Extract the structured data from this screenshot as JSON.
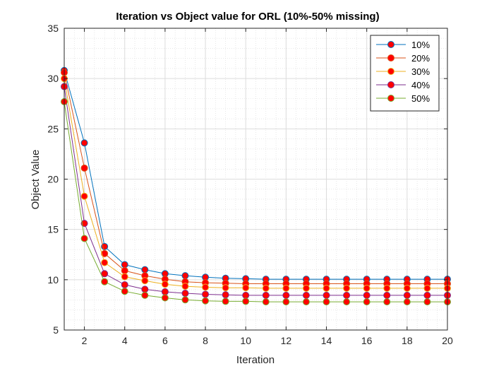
{
  "chart_data": {
    "type": "line",
    "title": "Iteration vs Object value for ORL (10%-50% missing)",
    "xlabel": "Iteration",
    "ylabel": "Object Value",
    "xlim": [
      1,
      20
    ],
    "ylim": [
      5,
      35
    ],
    "xticks": [
      2,
      4,
      6,
      8,
      10,
      12,
      14,
      16,
      18,
      20
    ],
    "yticks": [
      5,
      10,
      15,
      20,
      25,
      30,
      35
    ],
    "grid": true,
    "minor_grid": true,
    "legend_position": "top-right",
    "marker_fill": "#ff0000",
    "x": [
      1,
      2,
      3,
      4,
      5,
      6,
      7,
      8,
      9,
      10,
      11,
      12,
      13,
      14,
      15,
      16,
      17,
      18,
      19,
      20
    ],
    "series": [
      {
        "name": "10%",
        "color": "#0072bd",
        "values": [
          30.8,
          23.6,
          13.3,
          11.5,
          11.0,
          10.6,
          10.4,
          10.25,
          10.15,
          10.1,
          10.05,
          10.05,
          10.05,
          10.05,
          10.05,
          10.05,
          10.05,
          10.05,
          10.05,
          10.05
        ]
      },
      {
        "name": "20%",
        "color": "#d95319",
        "values": [
          30.6,
          21.1,
          12.6,
          10.9,
          10.4,
          10.05,
          9.8,
          9.7,
          9.65,
          9.6,
          9.6,
          9.6,
          9.6,
          9.6,
          9.6,
          9.6,
          9.6,
          9.6,
          9.6,
          9.6
        ]
      },
      {
        "name": "30%",
        "color": "#edb120",
        "values": [
          30.0,
          18.3,
          11.7,
          10.3,
          9.9,
          9.55,
          9.35,
          9.25,
          9.2,
          9.2,
          9.15,
          9.15,
          9.15,
          9.15,
          9.15,
          9.15,
          9.15,
          9.15,
          9.15,
          9.15
        ]
      },
      {
        "name": "40%",
        "color": "#7e2f8e",
        "values": [
          29.2,
          15.6,
          10.6,
          9.5,
          9.05,
          8.8,
          8.65,
          8.55,
          8.5,
          8.45,
          8.45,
          8.45,
          8.45,
          8.45,
          8.45,
          8.45,
          8.45,
          8.45,
          8.45,
          8.45
        ]
      },
      {
        "name": "50%",
        "color": "#77ac30",
        "values": [
          27.7,
          14.1,
          9.8,
          8.85,
          8.45,
          8.2,
          8.0,
          7.9,
          7.85,
          7.85,
          7.8,
          7.8,
          7.8,
          7.8,
          7.8,
          7.8,
          7.8,
          7.8,
          7.8,
          7.8
        ]
      }
    ]
  }
}
